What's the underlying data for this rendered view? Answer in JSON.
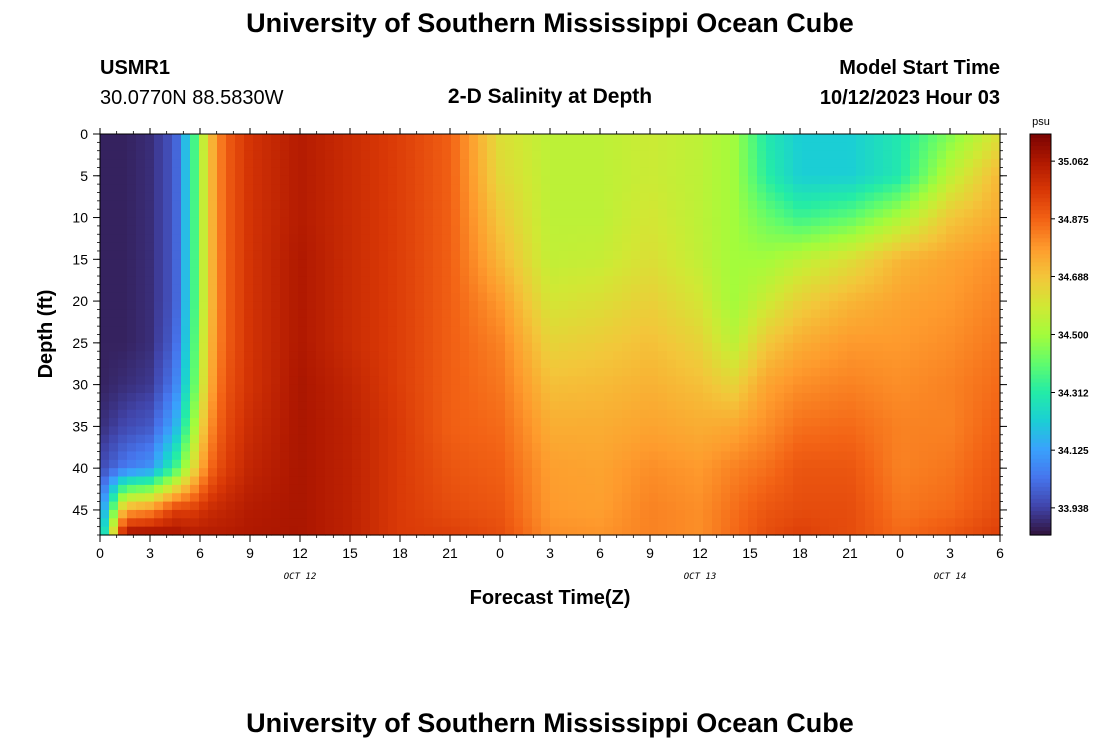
{
  "header": {
    "title": "University of Southern Mississippi Ocean Cube",
    "station": "USMR1",
    "location": "30.0770N  88.5830W",
    "subtitle": "2-D Salinity at Depth",
    "model_label": "Model Start Time",
    "model_time": "10/12/2023 Hour 03"
  },
  "footer": {
    "title": "University of Southern Mississippi Ocean Cube"
  },
  "colors": {
    "colormap": [
      "#30123b",
      "#4145ab",
      "#4675ed",
      "#39a2fc",
      "#1bcfd4",
      "#24eca6",
      "#61fc6c",
      "#a4fc3b",
      "#d1e834",
      "#f3c63a",
      "#fe9b2d",
      "#f36315",
      "#d93806",
      "#b11901",
      "#7a0402"
    ]
  },
  "chart_data": {
    "type": "heatmap",
    "title": "2-D Salinity at Depth",
    "xlabel": "Forecast Time(Z)",
    "ylabel": "Depth (ft)",
    "x_ticks": [
      "0",
      "3",
      "6",
      "9",
      "12",
      "15",
      "18",
      "21",
      "0",
      "3",
      "6",
      "9",
      "12",
      "15",
      "18",
      "21",
      "0",
      "3",
      "6"
    ],
    "x_hours": [
      0,
      3,
      6,
      9,
      12,
      15,
      18,
      21,
      24,
      27,
      30,
      33,
      36,
      39,
      42,
      45,
      48,
      51,
      54
    ],
    "xlim": [
      0,
      54
    ],
    "date_labels": [
      {
        "text": "OCT 12",
        "hour": 12
      },
      {
        "text": "OCT 13",
        "hour": 36
      },
      {
        "text": "OCT 14",
        "hour": 51
      }
    ],
    "y_ticks": [
      "0",
      "5",
      "10",
      "15",
      "20",
      "25",
      "30",
      "35",
      "40",
      "45"
    ],
    "y_values": [
      0,
      5,
      10,
      15,
      20,
      25,
      30,
      35,
      40,
      45
    ],
    "ylim": [
      0,
      48
    ],
    "y_inverted": true,
    "colorbar": {
      "unit": "psu",
      "labels": [
        "35.062",
        "34.875",
        "34.688",
        "34.500",
        "34.312",
        "34.125",
        "33.938"
      ],
      "values": [
        35.062,
        34.875,
        34.688,
        34.5,
        34.312,
        34.125,
        33.938
      ],
      "vmin": 33.85,
      "vmax": 35.15
    },
    "grid": false,
    "salinity_grid": {
      "hours": [
        0,
        1.5,
        3,
        4.5,
        5.5,
        6.5,
        7.5,
        9,
        12,
        15,
        18,
        21,
        24,
        27,
        30,
        33,
        36,
        38,
        40,
        42,
        45,
        48,
        51,
        54
      ],
      "depths_ft": [
        0,
        5,
        10,
        15,
        20,
        25,
        30,
        35,
        40,
        45,
        48
      ],
      "psu": [
        [
          33.88,
          33.88,
          33.88,
          33.88,
          33.88,
          33.88,
          33.88,
          33.9,
          33.95,
          34.05,
          34.12
        ],
        [
          33.88,
          33.88,
          33.88,
          33.88,
          33.88,
          33.88,
          33.9,
          33.95,
          34.05,
          34.75,
          35.1
        ],
        [
          33.9,
          33.9,
          33.9,
          33.9,
          33.9,
          33.9,
          33.92,
          33.98,
          34.1,
          34.8,
          35.1
        ],
        [
          33.98,
          33.98,
          33.98,
          33.98,
          33.98,
          34.0,
          34.05,
          34.15,
          34.35,
          34.95,
          35.08
        ],
        [
          34.3,
          34.3,
          34.3,
          34.3,
          34.3,
          34.32,
          34.35,
          34.45,
          34.6,
          34.95,
          35.05
        ],
        [
          34.68,
          34.68,
          34.68,
          34.68,
          34.68,
          34.7,
          34.72,
          34.78,
          34.85,
          35.0,
          35.05
        ],
        [
          34.88,
          34.88,
          34.88,
          34.88,
          34.88,
          34.88,
          34.9,
          34.92,
          34.95,
          35.02,
          35.05
        ],
        [
          34.98,
          34.98,
          34.98,
          34.98,
          34.98,
          34.98,
          34.98,
          35.0,
          35.02,
          35.05,
          35.06
        ],
        [
          35.05,
          35.05,
          35.05,
          35.06,
          35.06,
          35.06,
          35.07,
          35.07,
          35.07,
          35.07,
          35.07
        ],
        [
          35.0,
          35.0,
          35.0,
          35.0,
          35.0,
          35.0,
          35.02,
          35.03,
          35.03,
          35.03,
          35.03
        ],
        [
          34.95,
          34.95,
          34.95,
          34.95,
          34.95,
          34.95,
          34.95,
          34.96,
          34.96,
          34.96,
          34.96
        ],
        [
          34.88,
          34.88,
          34.88,
          34.88,
          34.88,
          34.88,
          34.88,
          34.88,
          34.9,
          34.92,
          34.95
        ],
        [
          34.62,
          34.64,
          34.68,
          34.72,
          34.78,
          34.82,
          34.84,
          34.86,
          34.88,
          34.9,
          34.92
        ],
        [
          34.55,
          34.55,
          34.55,
          34.56,
          34.6,
          34.65,
          34.7,
          34.74,
          34.77,
          34.78,
          34.8
        ],
        [
          34.55,
          34.55,
          34.55,
          34.57,
          34.62,
          34.67,
          34.71,
          34.74,
          34.76,
          34.77,
          34.79
        ],
        [
          34.58,
          34.58,
          34.6,
          34.62,
          34.66,
          34.7,
          34.73,
          34.76,
          34.8,
          34.82,
          34.82
        ],
        [
          34.55,
          34.55,
          34.55,
          34.56,
          34.6,
          34.65,
          34.7,
          34.74,
          34.78,
          34.8,
          34.8
        ],
        [
          34.5,
          34.5,
          34.5,
          34.5,
          34.5,
          34.55,
          34.65,
          34.75,
          34.82,
          34.85,
          34.86
        ],
        [
          34.3,
          34.32,
          34.42,
          34.5,
          34.58,
          34.68,
          34.76,
          34.8,
          34.85,
          34.9,
          34.92
        ],
        [
          34.22,
          34.22,
          34.35,
          34.55,
          34.66,
          34.74,
          34.8,
          34.85,
          34.9,
          34.92,
          34.95
        ],
        [
          34.22,
          34.22,
          34.4,
          34.62,
          34.72,
          34.78,
          34.82,
          34.86,
          34.9,
          34.92,
          34.92
        ],
        [
          34.3,
          34.3,
          34.52,
          34.72,
          34.76,
          34.78,
          34.8,
          34.82,
          34.82,
          34.84,
          34.86
        ],
        [
          34.45,
          34.55,
          34.68,
          34.76,
          34.78,
          34.8,
          34.82,
          34.82,
          34.84,
          34.86,
          34.9
        ],
        [
          34.62,
          34.72,
          34.75,
          34.8,
          34.82,
          34.84,
          34.86,
          34.88,
          34.9,
          34.92,
          34.95
        ]
      ]
    }
  }
}
